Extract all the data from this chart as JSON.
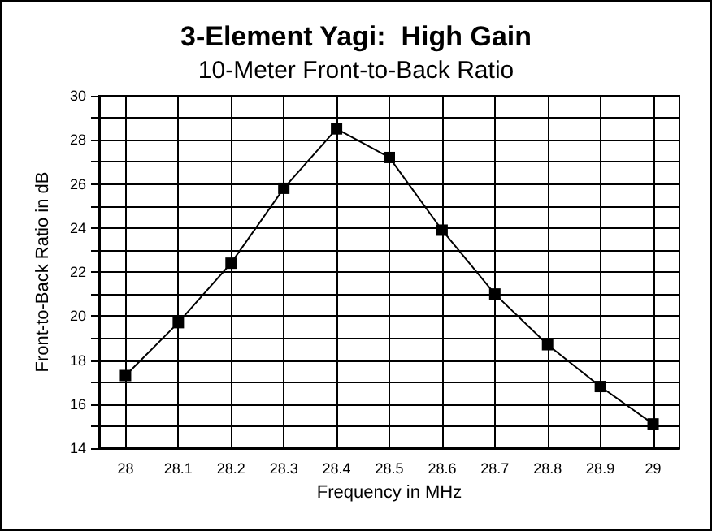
{
  "chart_data": {
    "type": "line",
    "title": "3-Element Yagi:  High Gain",
    "subtitle": "10-Meter Front-to-Back Ratio",
    "xlabel": "Frequency in MHz",
    "ylabel": "Front-to-Back Ratio in dB",
    "x": [
      28,
      28.1,
      28.2,
      28.3,
      28.4,
      28.5,
      28.6,
      28.7,
      28.8,
      28.9,
      29
    ],
    "series": [
      {
        "color": "#000000",
        "values": [
          17.3,
          19.7,
          22.4,
          25.8,
          28.5,
          27.2,
          23.9,
          21.0,
          18.7,
          16.8,
          15.1
        ]
      }
    ],
    "xlim": [
      27.95,
      29.05
    ],
    "xticks": [
      28,
      28.1,
      28.2,
      28.3,
      28.4,
      28.5,
      28.6,
      28.7,
      28.8,
      28.9,
      29
    ],
    "ylim": [
      14,
      30
    ],
    "yticks": [
      14,
      {
        "value": 15,
        "label": null
      },
      16,
      {
        "value": 17,
        "label": null
      },
      18,
      {
        "value": 19,
        "label": null
      },
      20,
      {
        "value": 21,
        "label": null
      },
      22,
      {
        "value": 23,
        "label": null
      },
      24,
      {
        "value": 25,
        "label": null
      },
      26,
      {
        "value": 27,
        "label": null
      },
      28,
      {
        "value": 29,
        "label": null
      },
      30
    ],
    "grid": true,
    "marker": "square",
    "line_style": "solid"
  }
}
